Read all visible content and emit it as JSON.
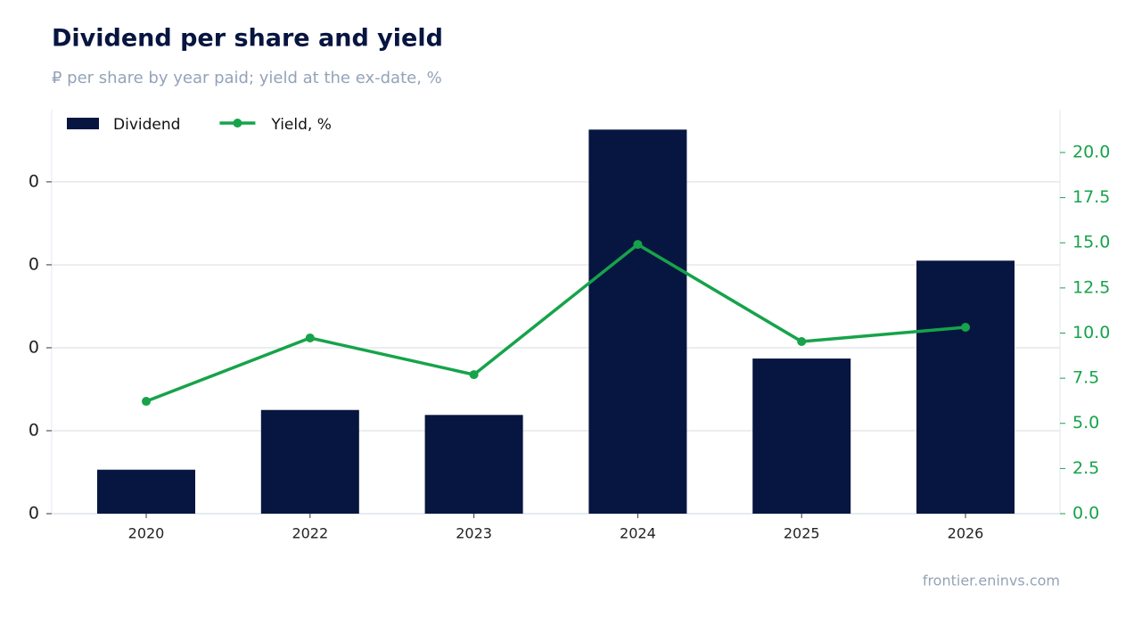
{
  "chart_data": {
    "type": "bar-line",
    "title": "Dividend per share and yield",
    "subtitle": "₽ per share by year paid; yield at the ex-date, %",
    "source": "frontier.eninvs.com",
    "categories": [
      "2020",
      "2022",
      "2023",
      "2024",
      "2025",
      "2026"
    ],
    "series": [
      {
        "name": "Dividend",
        "color": "#061640",
        "kind": "bar",
        "values": [
          0.053,
          0.125,
          0.119,
          0.463,
          0.187,
          0.305
        ]
      },
      {
        "name": "Yield, %",
        "color": "#16a34a",
        "kind": "line",
        "axis": "y2",
        "values": [
          6.22,
          9.73,
          7.7,
          14.91,
          9.53,
          10.32
        ]
      }
    ],
    "ylim": [
      0,
      0.487
    ],
    "yticks": [
      {
        "value": 0,
        "label": "0"
      },
      {
        "value": 0.1,
        "label": "0"
      },
      {
        "value": 0.2,
        "label": "0"
      },
      {
        "value": 0.3,
        "label": "0"
      },
      {
        "value": 0.4,
        "label": "0"
      }
    ],
    "y2lim": [
      0,
      22.37
    ],
    "y2ticks": [
      {
        "value": 0,
        "label": "0.0"
      },
      2.5,
      {
        "value": 5,
        "label": "5.0"
      },
      7.5,
      {
        "value": 10,
        "label": "10.0"
      },
      12.5,
      {
        "value": 15,
        "label": "15.0"
      },
      17.5,
      {
        "value": 20,
        "label": "20.0"
      }
    ],
    "grid": true,
    "legend": "top-left"
  }
}
